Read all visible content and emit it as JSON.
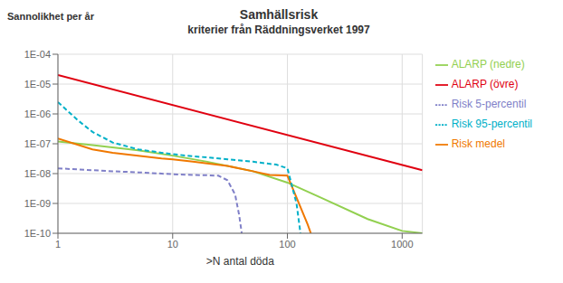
{
  "chart_data": {
    "type": "line",
    "title": "Samhällsrisk",
    "subtitle": "kriterier från Räddningsverket 1997",
    "ylabel": "Sannolikhet per år",
    "xlabel": ">N antal döda",
    "log": true,
    "grid": true,
    "legend": "right",
    "xlim": [
      1,
      1500
    ],
    "ylim": [
      1e-10,
      0.0001
    ],
    "xticks": [
      1,
      10,
      100,
      1000
    ],
    "yticks": [
      {
        "value": 1e-10,
        "label": "1E-10"
      },
      {
        "value": 1e-09,
        "label": "1E-09"
      },
      {
        "value": 1e-08,
        "label": "1E-08"
      },
      {
        "value": 1e-07,
        "label": "1E-07"
      },
      {
        "value": 1e-06,
        "label": "1E-06"
      },
      {
        "value": 1e-05,
        "label": "1E-05"
      },
      {
        "value": 0.0001,
        "label": "1E-04"
      }
    ],
    "series": [
      {
        "name": "ALARP (övre)",
        "color": "#e00010",
        "line_style": "solid",
        "x": [
          1,
          1500
        ],
        "values": [
          2e-05,
          1.3e-08
        ]
      },
      {
        "name": "ALARP (nedre)",
        "color": "#92d050",
        "line_style": "solid",
        "x": [
          1,
          2,
          5,
          10,
          20,
          50,
          100,
          200,
          500,
          1000,
          1500
        ],
        "values": [
          1.2e-07,
          9e-08,
          6e-08,
          4e-08,
          2.5e-08,
          1.2e-08,
          5e-09,
          1.5e-09,
          3e-10,
          1.2e-10,
          1e-10
        ]
      },
      {
        "name": "Risk medel",
        "color": "#f07800",
        "line_style": "solid",
        "x": [
          1,
          2,
          3,
          5,
          8,
          10,
          15,
          20,
          30,
          50,
          70,
          100,
          150,
          160
        ],
        "values": [
          1.5e-07,
          6.5e-08,
          5e-08,
          4e-08,
          3.2e-08,
          3e-08,
          2.5e-08,
          2.2e-08,
          1.8e-08,
          1.2e-08,
          9e-09,
          8.5e-09,
          2e-10,
          1e-10
        ]
      },
      {
        "name": "Risk 5-percentil",
        "color": "#8080c8",
        "line_style": "dashed",
        "x": [
          1,
          2,
          3,
          5,
          8,
          10,
          15,
          20,
          25,
          30,
          35,
          38,
          40
        ],
        "values": [
          1.5e-08,
          1.3e-08,
          1.2e-08,
          1.1e-08,
          1e-08,
          9.5e-09,
          9e-09,
          8.8e-09,
          8.5e-09,
          6e-09,
          2e-09,
          4e-10,
          1e-10
        ]
      },
      {
        "name": "Risk 95-percentil",
        "color": "#00b0c8",
        "line_style": "dashed",
        "x": [
          1,
          1.5,
          2,
          3,
          5,
          8,
          10,
          15,
          20,
          30,
          50,
          80,
          100,
          120,
          130
        ],
        "values": [
          2.5e-06,
          6e-07,
          2.5e-07,
          1.1e-07,
          6.5e-08,
          5e-08,
          4.5e-08,
          3.8e-08,
          3.5e-08,
          3e-08,
          2.5e-08,
          2e-08,
          1.5e-08,
          1e-09,
          1e-10
        ]
      }
    ]
  }
}
